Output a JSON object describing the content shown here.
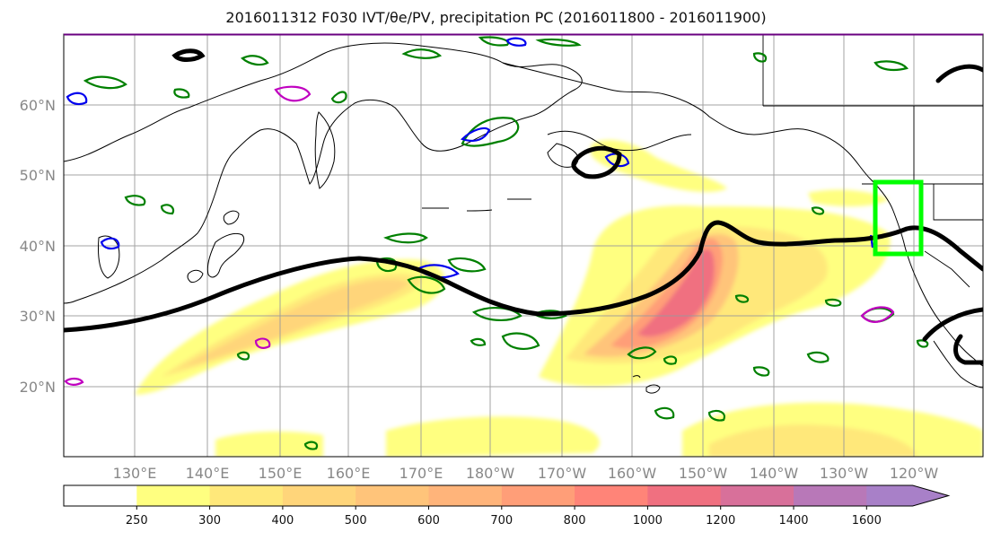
{
  "title": "2016011312 F030 IVT/θe/PV, precipitation PC (2016011800 - 2016011900)",
  "map": {
    "lat_labels": [
      "60°N",
      "50°N",
      "40°N",
      "30°N",
      "20°N"
    ],
    "lon_labels": [
      "130°E",
      "140°E",
      "150°E",
      "160°E",
      "170°E",
      "180°W",
      "170°W",
      "160°W",
      "150°W",
      "140°W",
      "130°W",
      "120°W"
    ],
    "grid": true
  },
  "colorbar": {
    "ticks": [
      "250",
      "300",
      "400",
      "500",
      "600",
      "700",
      "800",
      "1000",
      "1200",
      "1400",
      "1600"
    ],
    "colors": [
      "#ffffff",
      "#ffff80",
      "#ffe87a",
      "#ffd57a",
      "#ffc47a",
      "#ffb47a",
      "#ff9e78",
      "#ff8478",
      "#f07080",
      "#d8709a",
      "#b878b8",
      "#a880c8"
    ],
    "extend": "max"
  },
  "colors": {
    "jet_line": "#000000",
    "theta_e": "#008000",
    "pv_blue": "#0000ee",
    "pv_magenta": "#c000c0",
    "highlight_box": "#00ff00",
    "coast": "#000000"
  }
}
